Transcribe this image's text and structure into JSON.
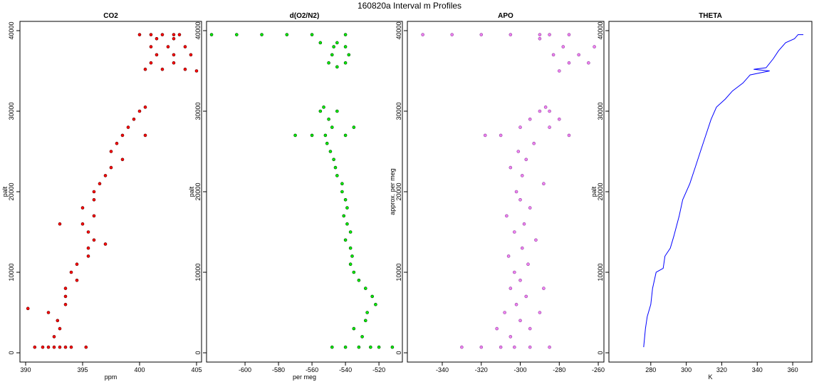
{
  "title": "160820a   Interval m Profiles",
  "chart_data": [
    {
      "type": "scatter",
      "title": "CO2",
      "xlabel": "ppm",
      "ylabel": "palt",
      "color": "#ff0000",
      "edge_color": "#5a0000",
      "xlim": [
        389.5,
        405.44
      ],
      "ylim": [
        -1150,
        41150
      ],
      "xticks": [
        390,
        395,
        400,
        405
      ],
      "yticks": [
        0,
        10000,
        20000,
        30000,
        40000
      ],
      "x": [
        390.8,
        391.5,
        392,
        392.5,
        393,
        393.5,
        394,
        395.3,
        392.5,
        393,
        392.8,
        392,
        393.5,
        393.5,
        393.5,
        394.5,
        394,
        394.5,
        395.5,
        395.5,
        396,
        395.5,
        395,
        396,
        395,
        396,
        396,
        396.5,
        397,
        397.5,
        398.5,
        397.5,
        398,
        398.5,
        399,
        399.5,
        400,
        400.5,
        390.2,
        397,
        393,
        400.5,
        400.5,
        402,
        404,
        401,
        403,
        401.5,
        403,
        404.5,
        401,
        402.5,
        404,
        401.5,
        403,
        400,
        401,
        402,
        403,
        403.5,
        405
      ],
      "values": [
        700,
        700,
        700,
        700,
        700,
        700,
        700,
        700,
        2000,
        3000,
        4000,
        5000,
        6000,
        7000,
        8000,
        9000,
        10000,
        11000,
        12000,
        13000,
        14000,
        15000,
        16000,
        17000,
        18000,
        19000,
        20000,
        21000,
        22000,
        23000,
        24000,
        25000,
        26000,
        27000,
        28000,
        29000,
        30000,
        30500,
        5500,
        13500,
        16000,
        27000,
        35200,
        35200,
        35200,
        36000,
        36000,
        37000,
        37000,
        37000,
        38000,
        38000,
        38000,
        39000,
        39000,
        39500,
        39500,
        39500,
        39500,
        39500,
        35000
      ]
    },
    {
      "type": "scatter",
      "title": "d(O2/N2)",
      "xlabel": "per meg",
      "ylabel": "palt",
      "color": "#00ee00",
      "edge_color": "#004400",
      "xlim": [
        -623,
        -506
      ],
      "ylim": [
        -1150,
        41150
      ],
      "xticks": [
        -600,
        -580,
        -560,
        -540,
        -520
      ],
      "yticks": [
        0,
        10000,
        20000,
        30000,
        40000
      ],
      "x": [
        -548,
        -540,
        -532,
        -525,
        -520,
        -512,
        -530,
        -535,
        -528,
        -527,
        -522,
        -524,
        -528,
        -532,
        -535,
        -537,
        -536,
        -537,
        -540,
        -537,
        -539,
        -541,
        -539,
        -540,
        -542,
        -542,
        -545,
        -546,
        -547,
        -549,
        -551,
        -560,
        -570,
        -552,
        -540,
        -548,
        -535,
        -550,
        -555,
        -545,
        -553,
        -545,
        -550,
        -540,
        -548,
        -538,
        -547,
        -540,
        -555,
        -545,
        -620,
        -605,
        -590,
        -575,
        -560,
        -540
      ],
      "values": [
        700,
        700,
        700,
        700,
        700,
        700,
        2000,
        3000,
        4000,
        5000,
        6000,
        7000,
        8000,
        9000,
        10000,
        11000,
        12000,
        13000,
        14000,
        15000,
        16000,
        17000,
        18000,
        19000,
        20000,
        21000,
        22000,
        23000,
        24000,
        25000,
        26000,
        27000,
        27000,
        27000,
        27000,
        28000,
        28000,
        29000,
        30000,
        30000,
        30500,
        35500,
        36000,
        36000,
        37000,
        37000,
        38000,
        38000,
        38500,
        38500,
        39500,
        39500,
        39500,
        39500,
        39500,
        39500
      ]
    },
    {
      "type": "scatter",
      "title": "APO",
      "ylabel": "approx. per meg",
      "color": "#ee82ee",
      "edge_color": "#9040a0",
      "xlim": [
        -357.9,
        -257.1
      ],
      "ylim": [
        -1150,
        41150
      ],
      "xticks": [
        -340,
        -320,
        -300,
        -280,
        -260
      ],
      "yticks": [
        0,
        10000,
        20000,
        30000,
        40000
      ],
      "x": [
        -330,
        -320,
        -310,
        -303,
        -295,
        -285,
        -305,
        -312,
        -295,
        -300,
        -308,
        -290,
        -302,
        -297,
        -305,
        -288,
        -300,
        -303,
        -296,
        -306,
        -299,
        -292,
        -303,
        -298,
        -307,
        -295,
        -300,
        -302,
        -288,
        -299,
        -305,
        -297,
        -301,
        -293,
        -310,
        -318,
        -275,
        -300,
        -285,
        -295,
        -280,
        -290,
        -285,
        -287,
        -280,
        -275,
        -265,
        -283,
        -270,
        -278,
        -262,
        -290,
        -350,
        -335,
        -320,
        -305,
        -290,
        -285,
        -275
      ],
      "values": [
        700,
        700,
        700,
        700,
        700,
        700,
        2000,
        3000,
        3000,
        4000,
        5000,
        5000,
        6000,
        7000,
        8000,
        8000,
        9000,
        10000,
        11000,
        12000,
        13000,
        14000,
        15000,
        16000,
        17000,
        18000,
        19000,
        20000,
        21000,
        22000,
        23000,
        24000,
        25000,
        26000,
        27000,
        27000,
        27000,
        28000,
        28000,
        29000,
        29000,
        30000,
        30000,
        30500,
        35000,
        36000,
        36000,
        37000,
        37000,
        38000,
        38000,
        39000,
        39500,
        39500,
        39500,
        39500,
        39500,
        39500,
        39500
      ]
    },
    {
      "type": "line",
      "title": "THETA",
      "xlabel": "K",
      "ylabel": "palt",
      "color": "#0000ff",
      "xlim": [
        256.4,
        370.8
      ],
      "ylim": [
        -1150,
        41150
      ],
      "xticks": [
        280,
        300,
        320,
        340,
        360
      ],
      "yticks": [
        0,
        10000,
        20000,
        30000,
        40000
      ],
      "x": [
        276,
        277,
        278,
        280,
        281,
        283,
        287,
        288,
        291,
        293,
        296,
        298,
        302,
        305,
        308,
        311,
        314,
        317,
        322,
        326,
        332,
        336,
        347,
        338,
        345,
        349,
        352,
        356,
        361,
        363,
        366
      ],
      "values": [
        700,
        3000,
        4500,
        6000,
        8000,
        10000,
        10500,
        12000,
        13000,
        14500,
        17000,
        19000,
        21000,
        23000,
        25000,
        27000,
        29000,
        30500,
        31500,
        32500,
        33500,
        34500,
        35000,
        35200,
        35400,
        36500,
        37500,
        38500,
        39000,
        39500,
        39500
      ]
    }
  ]
}
